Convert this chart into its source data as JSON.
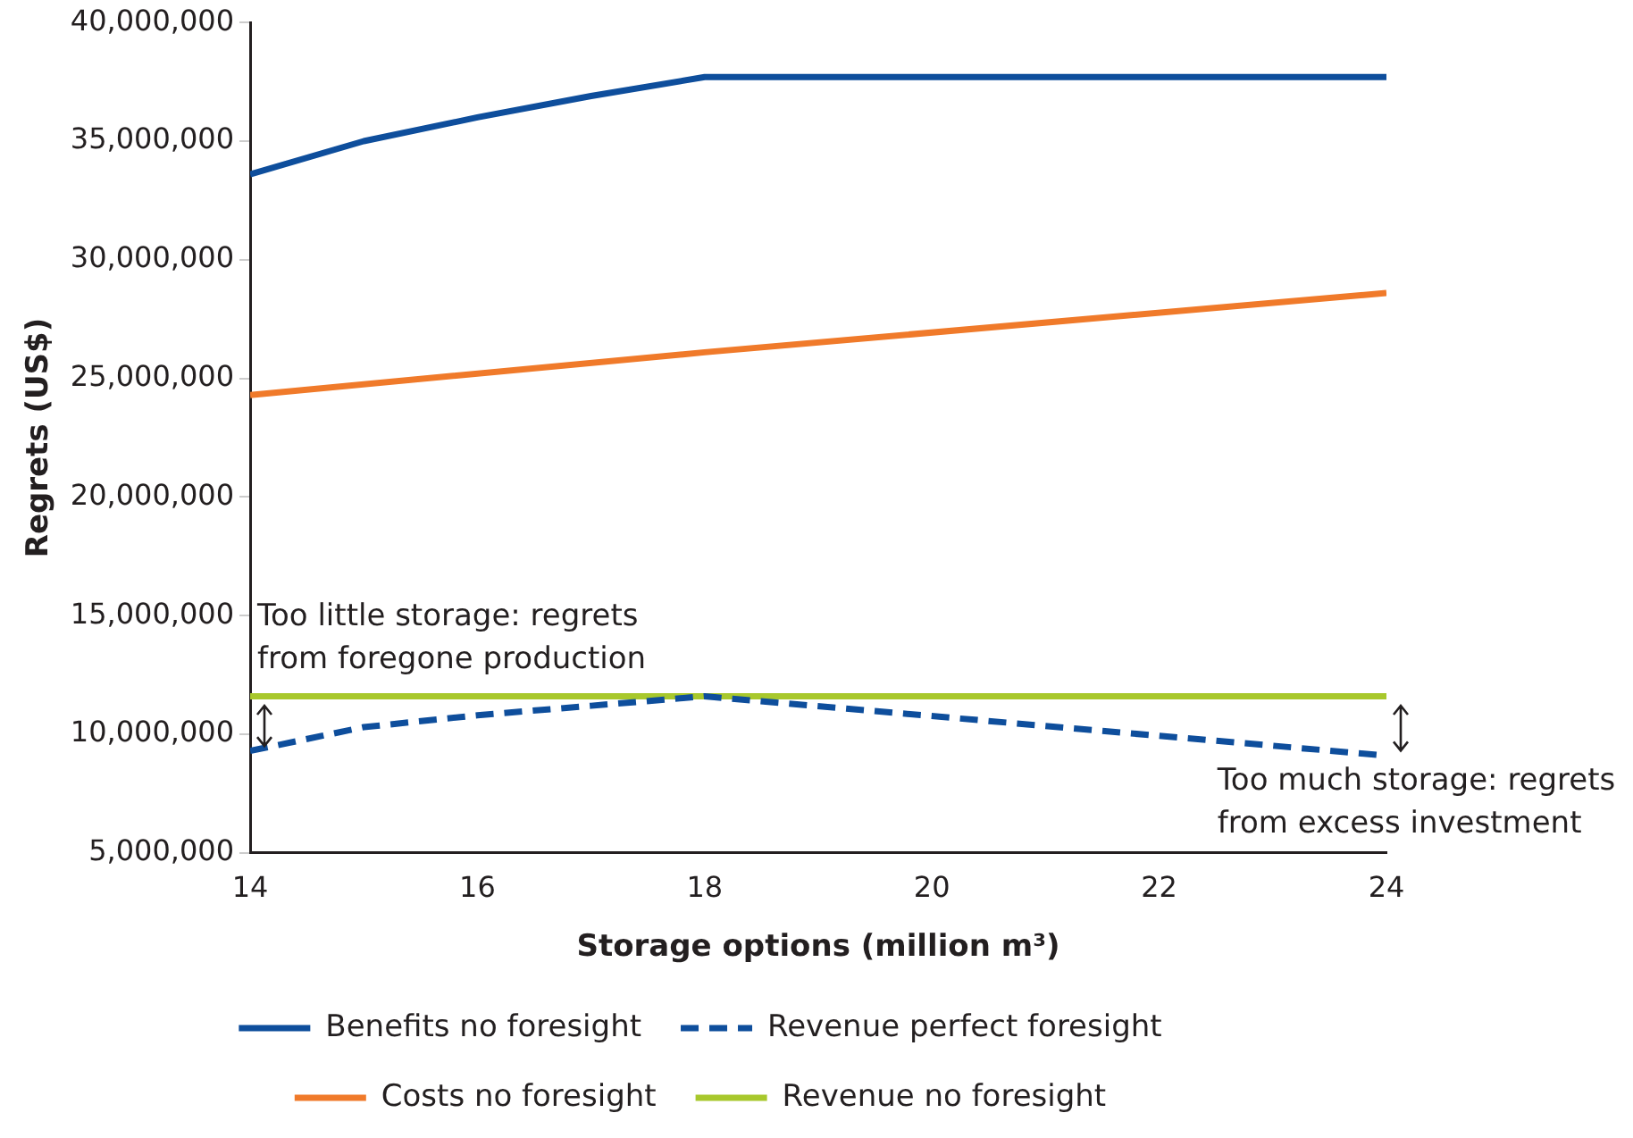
{
  "chart_data": {
    "type": "line",
    "xlabel": "Storage options (million m³)",
    "ylabel": "Regrets (US$)",
    "xlim": [
      14,
      24
    ],
    "xticks": [
      14,
      16,
      18,
      20,
      22,
      24
    ],
    "ylim": [
      5000000,
      40000000
    ],
    "yticks": [
      {
        "value": 5000000,
        "label": "5,000,000"
      },
      {
        "value": 10000000,
        "label": "10,000,000"
      },
      {
        "value": 15000000,
        "label": "15,000,000"
      },
      {
        "value": 20000000,
        "label": "20,000,000"
      },
      {
        "value": 25000000,
        "label": "25,000,000"
      },
      {
        "value": 30000000,
        "label": "30,000,000"
      },
      {
        "value": 35000000,
        "label": "35,000,000"
      },
      {
        "value": 40000000,
        "label": "40,000,000"
      }
    ],
    "grid": false,
    "legend": "bottom",
    "marker": "none",
    "series": [
      {
        "name": "Benefits no foresight",
        "color": "#0e4e9c",
        "x": [
          14,
          15,
          16,
          17,
          18,
          24
        ],
        "values": [
          33600000,
          35000000,
          36000000,
          36900000,
          37700000,
          37700000
        ]
      },
      {
        "name": "Revenue perfect foresight",
        "color": "#0e4e9c",
        "line_style": "dashed",
        "x": [
          14,
          15,
          16,
          17,
          18,
          24
        ],
        "values": [
          9300000,
          10300000,
          10800000,
          11200000,
          11600000,
          9100000
        ]
      },
      {
        "name": "Costs no foresight",
        "color": "#f07a2a",
        "x": [
          14,
          18,
          24
        ],
        "values": [
          24300000,
          26100000,
          28600000
        ]
      },
      {
        "name": "Revenue no foresight",
        "color": "#a8c82c",
        "x": [
          14,
          24
        ],
        "values": [
          11600000,
          11600000
        ]
      }
    ],
    "annotations": [
      "Too little storage: regrets\nfrom foregone production",
      "Too much storage: regrets\nfrom excess investment"
    ]
  }
}
